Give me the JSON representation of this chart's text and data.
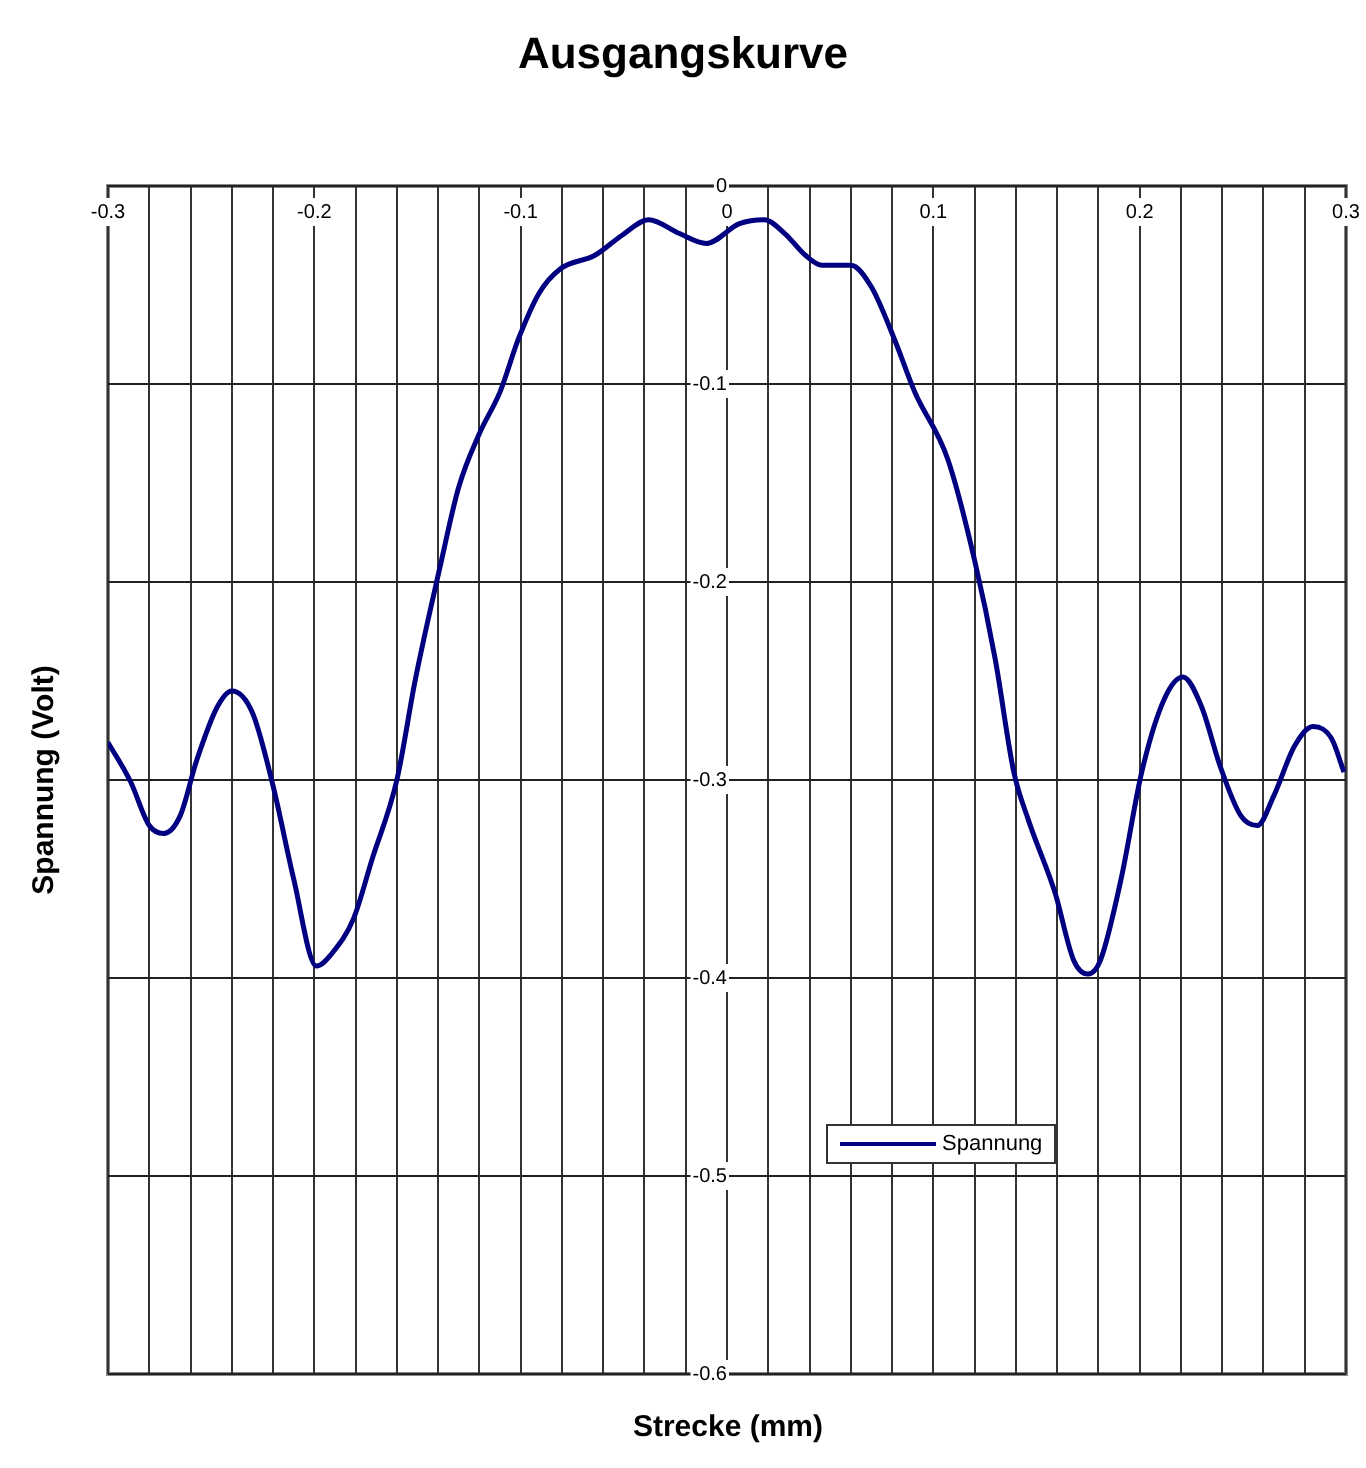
{
  "chart_data": {
    "type": "line",
    "title": "Ausgangskurve",
    "xlabel": "Strecke (mm)",
    "ylabel": "Spannung (Volt)",
    "xlim": [
      -0.3,
      0.3
    ],
    "ylim": [
      -0.6,
      0
    ],
    "xticks": [
      -0.3,
      {
        "value": -0.28,
        "label": null
      },
      {
        "value": -0.26,
        "label": null
      },
      {
        "value": -0.24,
        "label": null
      },
      {
        "value": -0.22,
        "label": null
      },
      -0.2,
      {
        "value": -0.18,
        "label": null
      },
      {
        "value": -0.16,
        "label": null
      },
      {
        "value": -0.14,
        "label": null
      },
      {
        "value": -0.12,
        "label": null
      },
      -0.1,
      {
        "value": -0.08,
        "label": null
      },
      {
        "value": -0.06,
        "label": null
      },
      {
        "value": -0.04,
        "label": null
      },
      {
        "value": -0.02,
        "label": null
      },
      0,
      {
        "value": 0.02,
        "label": null
      },
      {
        "value": 0.04,
        "label": null
      },
      {
        "value": 0.06,
        "label": null
      },
      {
        "value": 0.08,
        "label": null
      },
      0.1,
      {
        "value": 0.12,
        "label": null
      },
      {
        "value": 0.14,
        "label": null
      },
      {
        "value": 0.16,
        "label": null
      },
      {
        "value": 0.18,
        "label": null
      },
      0.2,
      {
        "value": 0.22,
        "label": null
      },
      {
        "value": 0.24,
        "label": null
      },
      {
        "value": 0.26,
        "label": null
      },
      {
        "value": 0.28,
        "label": null
      },
      0.3
    ],
    "yticks": [
      0,
      -0.1,
      -0.2,
      -0.3,
      -0.4,
      -0.5,
      -0.6
    ],
    "grid": true,
    "legend": "bottom right",
    "marker": "none",
    "line_style": "solid",
    "x": [
      -0.3,
      -0.289,
      -0.28,
      -0.273,
      -0.265,
      -0.257,
      -0.247,
      -0.24,
      -0.23,
      -0.22,
      -0.21,
      -0.199,
      -0.191,
      -0.181,
      -0.172,
      -0.16,
      -0.151,
      -0.139,
      -0.13,
      -0.12,
      -0.11,
      -0.101,
      -0.091,
      -0.081,
      -0.064,
      -0.051,
      -0.038,
      -0.023,
      -0.01,
      0.006,
      0.018,
      0.028,
      0.038,
      0.046,
      0.06,
      0.07,
      0.081,
      0.091,
      0.107,
      0.12,
      0.13,
      0.139,
      0.146,
      0.159,
      0.168,
      0.175,
      0.181,
      0.191,
      0.201,
      0.212,
      0.221,
      0.23,
      0.239,
      0.249,
      0.257,
      0.265,
      0.275,
      0.284,
      0.293,
      0.299
    ],
    "series": [
      {
        "name": "Spannung",
        "color": "#000080",
        "values": [
          -0.281,
          -0.301,
          -0.323,
          -0.327,
          -0.318,
          -0.29,
          -0.263,
          -0.255,
          -0.266,
          -0.303,
          -0.35,
          -0.394,
          -0.387,
          -0.37,
          -0.34,
          -0.3,
          -0.249,
          -0.192,
          -0.152,
          -0.125,
          -0.104,
          -0.077,
          -0.054,
          -0.042,
          -0.035,
          -0.025,
          -0.017,
          -0.024,
          -0.029,
          -0.019,
          -0.017,
          -0.024,
          -0.035,
          -0.04,
          -0.04,
          -0.051,
          -0.077,
          -0.104,
          -0.138,
          -0.189,
          -0.239,
          -0.296,
          -0.32,
          -0.357,
          -0.391,
          -0.398,
          -0.391,
          -0.35,
          -0.296,
          -0.259,
          -0.248,
          -0.263,
          -0.293,
          -0.318,
          -0.323,
          -0.308,
          -0.283,
          -0.273,
          -0.279,
          -0.296
        ]
      }
    ]
  }
}
